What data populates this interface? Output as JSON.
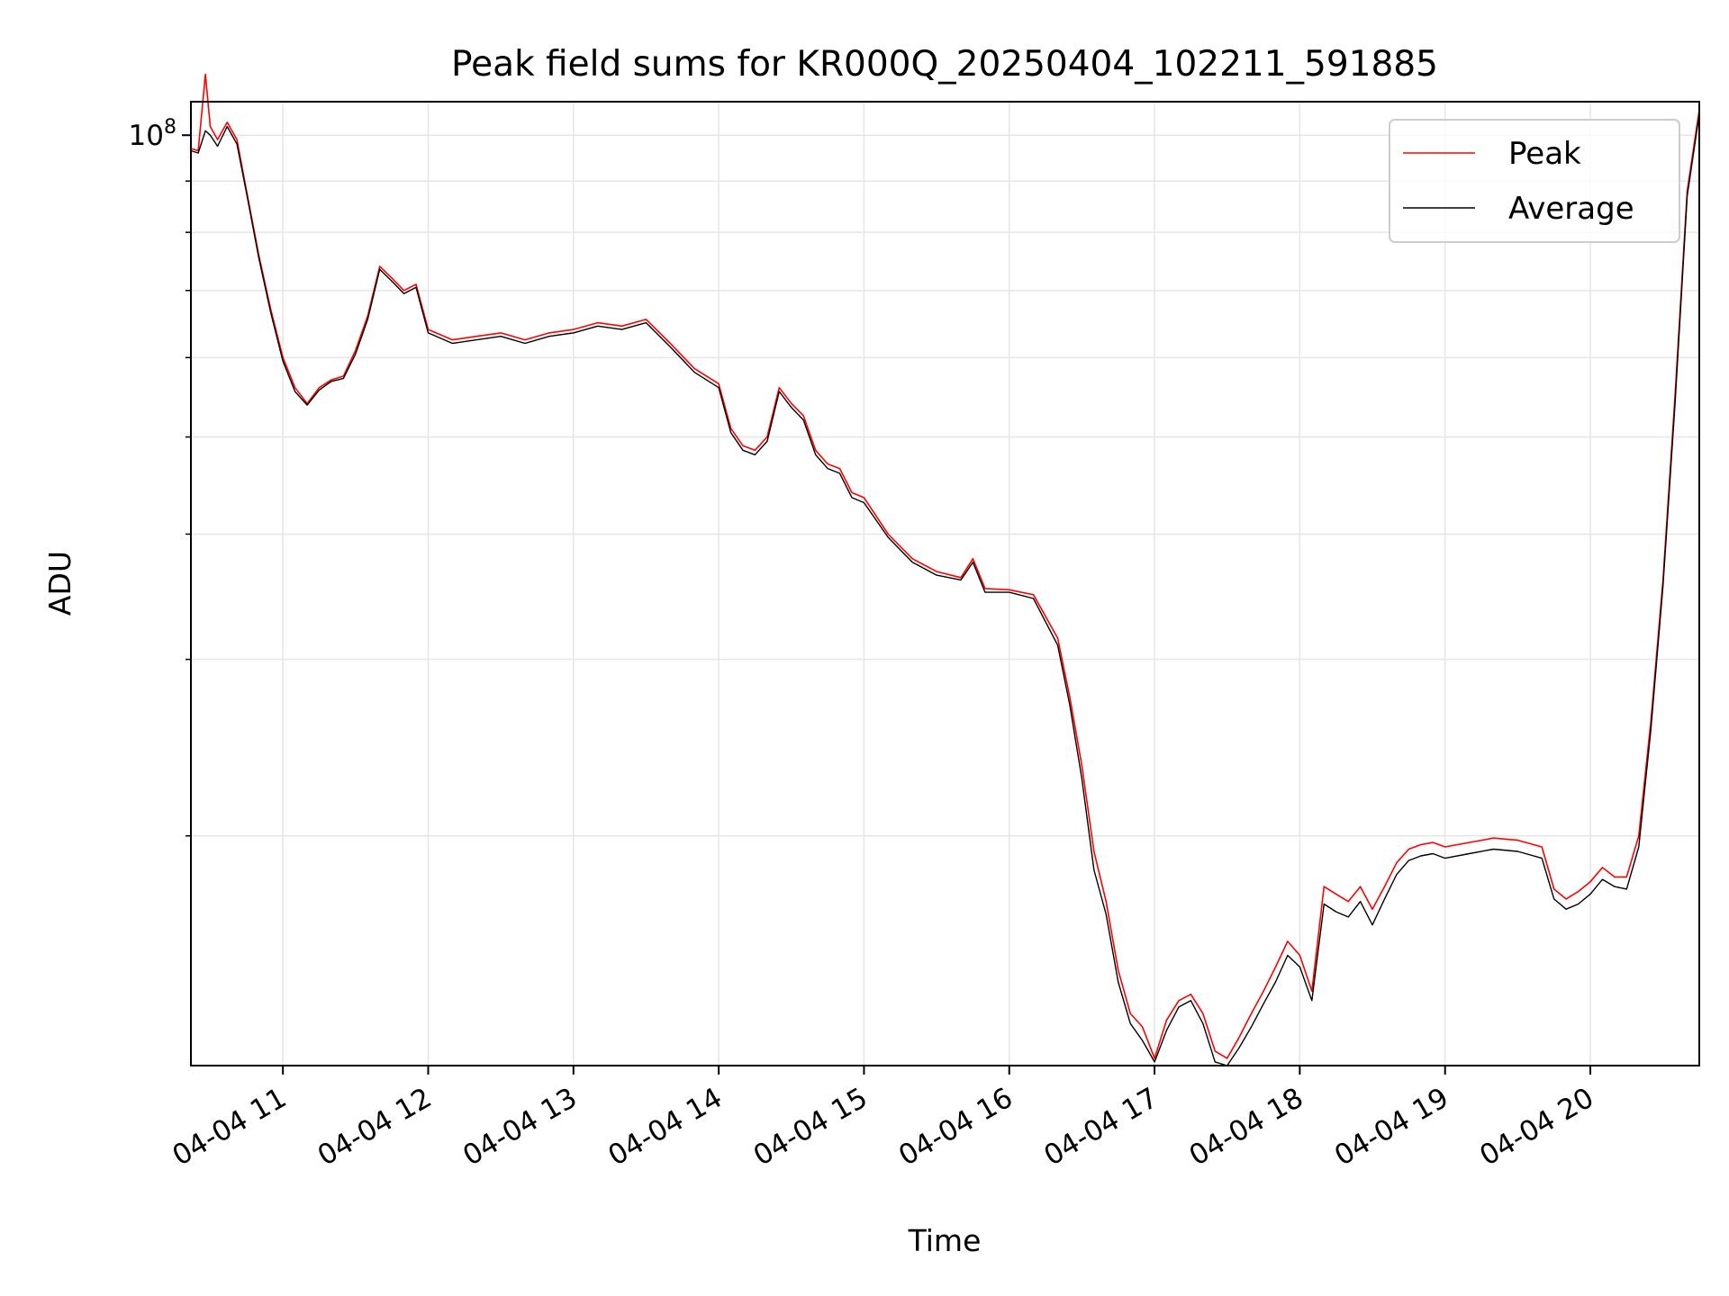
{
  "chart_data": {
    "type": "line",
    "title": "Peak field sums for KR000Q_20250404_102211_591885",
    "xlabel": "Time",
    "ylabel": "ADU",
    "y_scale": "log",
    "xlim": [
      "2025-04-04 10:22",
      "2025-04-04 20:45"
    ],
    "ylim": [
      11800000,
      108000000
    ],
    "x_ticks": [
      {
        "value": "2025-04-04 11:00",
        "label": "04-04 11"
      },
      {
        "value": "2025-04-04 12:00",
        "label": "04-04 12"
      },
      {
        "value": "2025-04-04 13:00",
        "label": "04-04 13"
      },
      {
        "value": "2025-04-04 14:00",
        "label": "04-04 14"
      },
      {
        "value": "2025-04-04 15:00",
        "label": "04-04 15"
      },
      {
        "value": "2025-04-04 16:00",
        "label": "04-04 16"
      },
      {
        "value": "2025-04-04 17:00",
        "label": "04-04 17"
      },
      {
        "value": "2025-04-04 18:00",
        "label": "04-04 18"
      },
      {
        "value": "2025-04-04 19:00",
        "label": "04-04 19"
      },
      {
        "value": "2025-04-04 20:00",
        "label": "04-04 20"
      }
    ],
    "y_major_tick": {
      "value": 100000000,
      "label_base": "10",
      "label_exp": "8"
    },
    "y_minor_ticks": [
      20000000,
      30000000,
      40000000,
      50000000,
      60000000,
      70000000,
      80000000,
      90000000
    ],
    "grid": true,
    "legend_position": "top-right",
    "series": [
      {
        "name": "Peak",
        "color": "#ff0000",
        "x": [
          "2025-04-04 10:22",
          "2025-04-04 10:25",
          "2025-04-04 10:28",
          "2025-04-04 10:30",
          "2025-04-04 10:33",
          "2025-04-04 10:37",
          "2025-04-04 10:41",
          "2025-04-04 10:45",
          "2025-04-04 10:50",
          "2025-04-04 10:55",
          "2025-04-04 11:00",
          "2025-04-04 11:05",
          "2025-04-04 11:10",
          "2025-04-04 11:15",
          "2025-04-04 11:20",
          "2025-04-04 11:25",
          "2025-04-04 11:30",
          "2025-04-04 11:35",
          "2025-04-04 11:40",
          "2025-04-04 11:45",
          "2025-04-04 11:50",
          "2025-04-04 11:55",
          "2025-04-04 12:00",
          "2025-04-04 12:10",
          "2025-04-04 12:20",
          "2025-04-04 12:30",
          "2025-04-04 12:40",
          "2025-04-04 12:50",
          "2025-04-04 13:00",
          "2025-04-04 13:10",
          "2025-04-04 13:20",
          "2025-04-04 13:30",
          "2025-04-04 13:40",
          "2025-04-04 13:50",
          "2025-04-04 14:00",
          "2025-04-04 14:05",
          "2025-04-04 14:10",
          "2025-04-04 14:15",
          "2025-04-04 14:20",
          "2025-04-04 14:25",
          "2025-04-04 14:30",
          "2025-04-04 14:35",
          "2025-04-04 14:40",
          "2025-04-04 14:45",
          "2025-04-04 14:50",
          "2025-04-04 14:55",
          "2025-04-04 15:00",
          "2025-04-04 15:10",
          "2025-04-04 15:20",
          "2025-04-04 15:30",
          "2025-04-04 15:40",
          "2025-04-04 15:45",
          "2025-04-04 15:50",
          "2025-04-04 16:00",
          "2025-04-04 16:10",
          "2025-04-04 16:20",
          "2025-04-04 16:25",
          "2025-04-04 16:30",
          "2025-04-04 16:35",
          "2025-04-04 16:40",
          "2025-04-04 16:45",
          "2025-04-04 16:50",
          "2025-04-04 16:55",
          "2025-04-04 17:00",
          "2025-04-04 17:05",
          "2025-04-04 17:10",
          "2025-04-04 17:15",
          "2025-04-04 17:20",
          "2025-04-04 17:25",
          "2025-04-04 17:30",
          "2025-04-04 17:35",
          "2025-04-04 17:40",
          "2025-04-04 17:45",
          "2025-04-04 17:50",
          "2025-04-04 17:55",
          "2025-04-04 18:00",
          "2025-04-04 18:05",
          "2025-04-04 18:10",
          "2025-04-04 18:15",
          "2025-04-04 18:20",
          "2025-04-04 18:25",
          "2025-04-04 18:30",
          "2025-04-04 18:35",
          "2025-04-04 18:40",
          "2025-04-04 18:45",
          "2025-04-04 18:50",
          "2025-04-04 18:55",
          "2025-04-04 19:00",
          "2025-04-04 19:10",
          "2025-04-04 19:20",
          "2025-04-04 19:30",
          "2025-04-04 19:40",
          "2025-04-04 19:45",
          "2025-04-04 19:50",
          "2025-04-04 19:55",
          "2025-04-04 20:00",
          "2025-04-04 20:05",
          "2025-04-04 20:10",
          "2025-04-04 20:15",
          "2025-04-04 20:20",
          "2025-04-04 20:25",
          "2025-04-04 20:30",
          "2025-04-04 20:35",
          "2025-04-04 20:40",
          "2025-04-04 20:45"
        ],
        "values": [
          97000000,
          96500000,
          115000000,
          102000000,
          99000000,
          103000000,
          99000000,
          88000000,
          76000000,
          67000000,
          60000000,
          56000000,
          54000000,
          56000000,
          57000000,
          57500000,
          61000000,
          66000000,
          74000000,
          72000000,
          70000000,
          71000000,
          64000000,
          62500000,
          63000000,
          63500000,
          62500000,
          63500000,
          64000000,
          65000000,
          64500000,
          65500000,
          62000000,
          58500000,
          56500000,
          51000000,
          49000000,
          48500000,
          50000000,
          56000000,
          54000000,
          52500000,
          48500000,
          47000000,
          46500000,
          44000000,
          43500000,
          40000000,
          37800000,
          36700000,
          36200000,
          37800000,
          35300000,
          35200000,
          34800000,
          31500000,
          27500000,
          23500000,
          19300000,
          17200000,
          14700000,
          13300000,
          12900000,
          12000000,
          13100000,
          13700000,
          13900000,
          13300000,
          12200000,
          12000000,
          12600000,
          13300000,
          14000000,
          14800000,
          15700000,
          15200000,
          14000000,
          17800000,
          17500000,
          17200000,
          17800000,
          16900000,
          17800000,
          18800000,
          19400000,
          19600000,
          19700000,
          19500000,
          19700000,
          19900000,
          19800000,
          19500000,
          17700000,
          17300000,
          17600000,
          18000000,
          18600000,
          18200000,
          18200000,
          20000000,
          26000000,
          36000000,
          55000000,
          88000000,
          106000000
        ]
      },
      {
        "name": "Average",
        "color": "#000000",
        "x": [
          "2025-04-04 10:22",
          "2025-04-04 10:25",
          "2025-04-04 10:28",
          "2025-04-04 10:30",
          "2025-04-04 10:33",
          "2025-04-04 10:37",
          "2025-04-04 10:41",
          "2025-04-04 10:45",
          "2025-04-04 10:50",
          "2025-04-04 10:55",
          "2025-04-04 11:00",
          "2025-04-04 11:05",
          "2025-04-04 11:10",
          "2025-04-04 11:15",
          "2025-04-04 11:20",
          "2025-04-04 11:25",
          "2025-04-04 11:30",
          "2025-04-04 11:35",
          "2025-04-04 11:40",
          "2025-04-04 11:45",
          "2025-04-04 11:50",
          "2025-04-04 11:55",
          "2025-04-04 12:00",
          "2025-04-04 12:10",
          "2025-04-04 12:20",
          "2025-04-04 12:30",
          "2025-04-04 12:40",
          "2025-04-04 12:50",
          "2025-04-04 13:00",
          "2025-04-04 13:10",
          "2025-04-04 13:20",
          "2025-04-04 13:30",
          "2025-04-04 13:40",
          "2025-04-04 13:50",
          "2025-04-04 14:00",
          "2025-04-04 14:05",
          "2025-04-04 14:10",
          "2025-04-04 14:15",
          "2025-04-04 14:20",
          "2025-04-04 14:25",
          "2025-04-04 14:30",
          "2025-04-04 14:35",
          "2025-04-04 14:40",
          "2025-04-04 14:45",
          "2025-04-04 14:50",
          "2025-04-04 14:55",
          "2025-04-04 15:00",
          "2025-04-04 15:10",
          "2025-04-04 15:20",
          "2025-04-04 15:30",
          "2025-04-04 15:40",
          "2025-04-04 15:45",
          "2025-04-04 15:50",
          "2025-04-04 16:00",
          "2025-04-04 16:10",
          "2025-04-04 16:20",
          "2025-04-04 16:25",
          "2025-04-04 16:30",
          "2025-04-04 16:35",
          "2025-04-04 16:40",
          "2025-04-04 16:45",
          "2025-04-04 16:50",
          "2025-04-04 16:55",
          "2025-04-04 17:00",
          "2025-04-04 17:05",
          "2025-04-04 17:10",
          "2025-04-04 17:15",
          "2025-04-04 17:20",
          "2025-04-04 17:25",
          "2025-04-04 17:30",
          "2025-04-04 17:35",
          "2025-04-04 17:40",
          "2025-04-04 17:45",
          "2025-04-04 17:50",
          "2025-04-04 17:55",
          "2025-04-04 18:00",
          "2025-04-04 18:05",
          "2025-04-04 18:10",
          "2025-04-04 18:15",
          "2025-04-04 18:20",
          "2025-04-04 18:25",
          "2025-04-04 18:30",
          "2025-04-04 18:35",
          "2025-04-04 18:40",
          "2025-04-04 18:45",
          "2025-04-04 18:50",
          "2025-04-04 18:55",
          "2025-04-04 19:00",
          "2025-04-04 19:10",
          "2025-04-04 19:20",
          "2025-04-04 19:30",
          "2025-04-04 19:40",
          "2025-04-04 19:45",
          "2025-04-04 19:50",
          "2025-04-04 19:55",
          "2025-04-04 20:00",
          "2025-04-04 20:05",
          "2025-04-04 20:10",
          "2025-04-04 20:15",
          "2025-04-04 20:20",
          "2025-04-04 20:25",
          "2025-04-04 20:30",
          "2025-04-04 20:35",
          "2025-04-04 20:40",
          "2025-04-04 20:45"
        ],
        "values": [
          96500000,
          96000000,
          101000000,
          100000000,
          97500000,
          102000000,
          98000000,
          87500000,
          75500000,
          66500000,
          59500000,
          55500000,
          53800000,
          55700000,
          56800000,
          57200000,
          60500000,
          65500000,
          73500000,
          71500000,
          69500000,
          70500000,
          63500000,
          62000000,
          62500000,
          63000000,
          62000000,
          63000000,
          63500000,
          64500000,
          64000000,
          65000000,
          61500000,
          58000000,
          56000000,
          50500000,
          48500000,
          48000000,
          49500000,
          55500000,
          53500000,
          52000000,
          48000000,
          46500000,
          46000000,
          43500000,
          43000000,
          39700000,
          37500000,
          36400000,
          36000000,
          37500000,
          35000000,
          35000000,
          34500000,
          31000000,
          27000000,
          22800000,
          18500000,
          16700000,
          14300000,
          13000000,
          12500000,
          11900000,
          12800000,
          13500000,
          13700000,
          13000000,
          11900000,
          11800000,
          12300000,
          12900000,
          13600000,
          14300000,
          15200000,
          14800000,
          13700000,
          17100000,
          16800000,
          16600000,
          17200000,
          16300000,
          17300000,
          18300000,
          18900000,
          19100000,
          19200000,
          19000000,
          19200000,
          19400000,
          19300000,
          19000000,
          17300000,
          16900000,
          17100000,
          17500000,
          18100000,
          17800000,
          17700000,
          19500000,
          25500000,
          35500000,
          54000000,
          87000000,
          105000000
        ]
      }
    ]
  }
}
